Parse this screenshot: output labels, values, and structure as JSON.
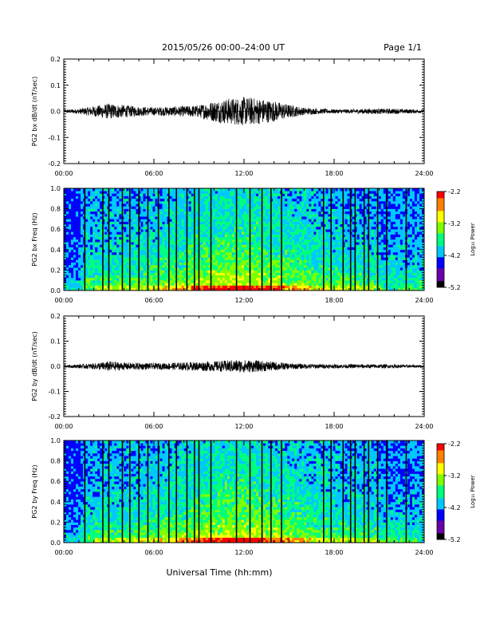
{
  "header": {
    "title": "2015/05/26  00:00–24:00 UT",
    "page": "Page 1/1"
  },
  "footer": {
    "x_axis_title": "Universal Time (hh:mm)"
  },
  "colors": {
    "trace": "#000000",
    "colormap": [
      "#000000",
      "#6a00a8",
      "#0000ff",
      "#00c8ff",
      "#00ff7f",
      "#7fff00",
      "#ffff00",
      "#ff8000",
      "#ff0000"
    ]
  },
  "chart_data": [
    {
      "type": "line",
      "title": "",
      "xlabel": "",
      "ylabel": "PG2 bx dB/dt (nT/sec)",
      "xlim": [
        0,
        24
      ],
      "ylim": [
        -0.2,
        0.2
      ],
      "xticks": [
        "00:00",
        "06:00",
        "12:00",
        "18:00",
        "24:00"
      ],
      "yticks": [
        "-0.2",
        "-0.1",
        "0.0",
        "0.1",
        "0.2"
      ],
      "envelope": {
        "hours": [
          0,
          1,
          2,
          3,
          4,
          5,
          6,
          7,
          8,
          9,
          10,
          11,
          12,
          13,
          14,
          15,
          16,
          17,
          18,
          19,
          20,
          21,
          22,
          23,
          24
        ],
        "max_abs": [
          0.006,
          0.01,
          0.02,
          0.03,
          0.024,
          0.018,
          0.016,
          0.018,
          0.02,
          0.024,
          0.04,
          0.05,
          0.055,
          0.05,
          0.04,
          0.026,
          0.014,
          0.01,
          0.008,
          0.008,
          0.01,
          0.01,
          0.01,
          0.008,
          0.006
        ]
      }
    },
    {
      "type": "heatmap",
      "title": "",
      "xlabel": "",
      "ylabel": "PG2 bx Freq (Hz)",
      "xlim": [
        0,
        24
      ],
      "ylim": [
        0,
        1
      ],
      "xticks": [
        "00:00",
        "06:00",
        "12:00",
        "18:00",
        "24:00"
      ],
      "yticks": [
        "0.0",
        "0.2",
        "0.4",
        "0.6",
        "0.8",
        "1.0"
      ],
      "colorbar": {
        "label": "Log₁₀ Power",
        "range": [
          -5.2,
          -2.2
        ],
        "ticks": [
          "-2.2",
          "-3.2",
          "-4.2",
          "-5.2"
        ]
      },
      "gap_hours": [
        1.4,
        2.6,
        3.0,
        3.9,
        4.4,
        5.0,
        5.6,
        6.3,
        7.0,
        7.5,
        8.2,
        8.7,
        9.0,
        9.8,
        11.5,
        12.4,
        13.2,
        13.8,
        14.5,
        17.3,
        17.8,
        18.6,
        19.1,
        19.4,
        20.0,
        20.3,
        20.9,
        21.5,
        22.8
      ]
    },
    {
      "type": "line",
      "title": "",
      "xlabel": "",
      "ylabel": "PG2 by dB/dt (nT/sec)",
      "xlim": [
        0,
        24
      ],
      "ylim": [
        -0.2,
        0.2
      ],
      "xticks": [
        "00:00",
        "06:00",
        "12:00",
        "18:00",
        "24:00"
      ],
      "yticks": [
        "-0.2",
        "-0.1",
        "0.0",
        "0.1",
        "0.2"
      ],
      "envelope": {
        "hours": [
          0,
          1,
          2,
          3,
          4,
          5,
          6,
          7,
          8,
          9,
          10,
          11,
          12,
          13,
          14,
          15,
          16,
          17,
          18,
          19,
          20,
          21,
          22,
          23,
          24
        ],
        "max_abs": [
          0.005,
          0.008,
          0.012,
          0.02,
          0.015,
          0.014,
          0.012,
          0.014,
          0.016,
          0.018,
          0.02,
          0.024,
          0.026,
          0.022,
          0.018,
          0.012,
          0.01,
          0.009,
          0.008,
          0.008,
          0.008,
          0.008,
          0.007,
          0.006,
          0.005
        ]
      }
    },
    {
      "type": "heatmap",
      "title": "",
      "xlabel": "",
      "ylabel": "PG2 by Freq (Hz)",
      "xlim": [
        0,
        24
      ],
      "ylim": [
        0,
        1
      ],
      "xticks": [
        "00:00",
        "06:00",
        "12:00",
        "18:00",
        "24:00"
      ],
      "yticks": [
        "0.0",
        "0.2",
        "0.4",
        "0.6",
        "0.8",
        "1.0"
      ],
      "colorbar": {
        "label": "Log₁₀ Power",
        "range": [
          -5.2,
          -2.2
        ],
        "ticks": [
          "-2.2",
          "-3.2",
          "-4.2",
          "-5.2"
        ]
      },
      "gap_hours": [
        1.4,
        2.6,
        3.0,
        3.9,
        4.4,
        5.0,
        5.6,
        6.3,
        7.0,
        7.5,
        8.2,
        8.7,
        9.0,
        9.8,
        11.5,
        12.4,
        13.2,
        13.8,
        14.5,
        17.3,
        17.8,
        18.6,
        19.1,
        19.4,
        20.0,
        20.3,
        20.9,
        21.5,
        22.8
      ]
    }
  ]
}
